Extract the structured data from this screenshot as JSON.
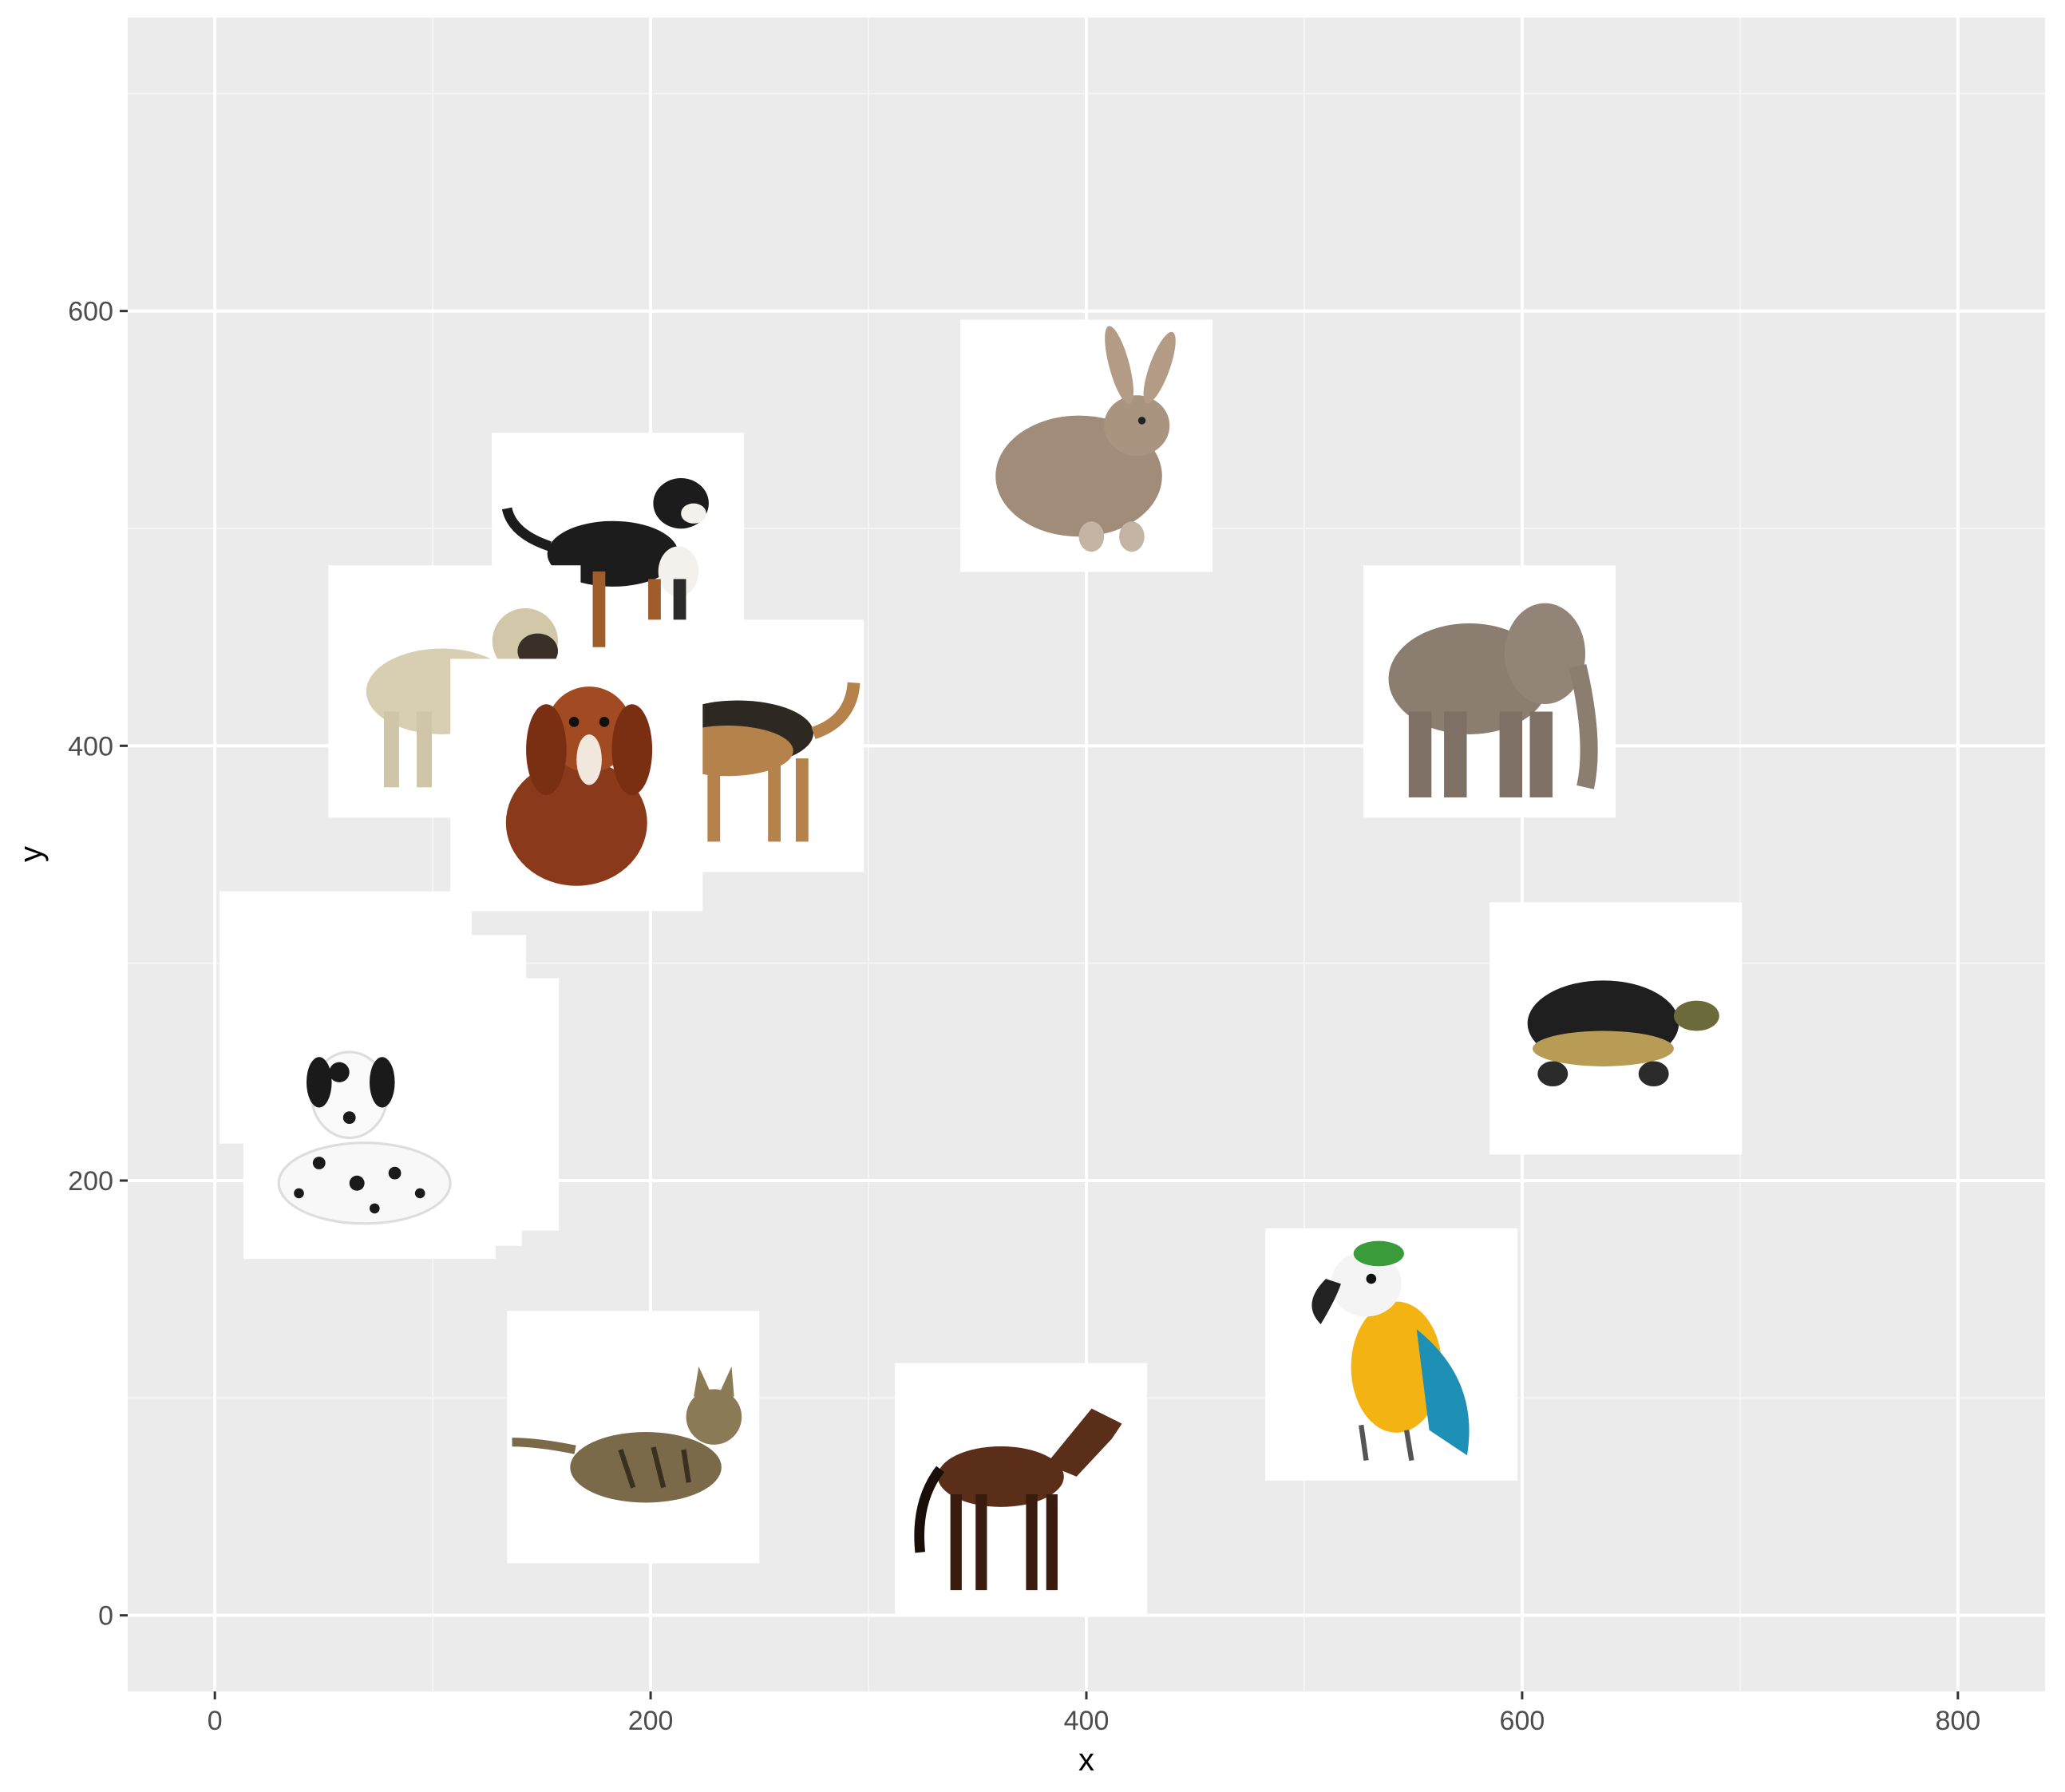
{
  "chart_data": {
    "type": "scatter",
    "marker": "image",
    "xlabel": "x",
    "ylabel": "y",
    "xlim": [
      -40,
      840
    ],
    "ylim": [
      -35,
      735
    ],
    "xticks": [
      0,
      200,
      400,
      600,
      800
    ],
    "yticks": [
      0,
      200,
      400,
      600
    ],
    "grid": true,
    "legend": "none",
    "points": [
      {
        "x": 400,
        "y": 538,
        "icon": "rabbit-icon"
      },
      {
        "x": 185,
        "y": 486,
        "icon": "bernese-mountain-dog-icon"
      },
      {
        "x": 110,
        "y": 425,
        "icon": "pug-icon"
      },
      {
        "x": 240,
        "y": 400,
        "icon": "german-shepherd-icon"
      },
      {
        "x": 166,
        "y": 382,
        "icon": "cavalier-spaniel-icon"
      },
      {
        "x": 585,
        "y": 425,
        "icon": "elephant-icon"
      },
      {
        "x": 643,
        "y": 270,
        "icon": "turtle-icon"
      },
      {
        "x": 60,
        "y": 275,
        "icon": "dalmatian-icon"
      },
      {
        "x": 85,
        "y": 255,
        "icon": "dalmatian-icon"
      },
      {
        "x": 100,
        "y": 235,
        "icon": "dalmatian-icon"
      },
      {
        "x": 83,
        "y": 228,
        "icon": "dalmatian-icon"
      },
      {
        "x": 71,
        "y": 222,
        "icon": "dalmatian-icon"
      },
      {
        "x": 540,
        "y": 120,
        "icon": "parrot-icon"
      },
      {
        "x": 192,
        "y": 82,
        "icon": "cat-icon"
      },
      {
        "x": 370,
        "y": 58,
        "icon": "horse-icon"
      }
    ]
  },
  "colors": {
    "panel_background": "#ebebeb",
    "grid_major": "#ffffff",
    "grid_minor": "#f5f5f5",
    "tile_background": "#ffffff"
  }
}
